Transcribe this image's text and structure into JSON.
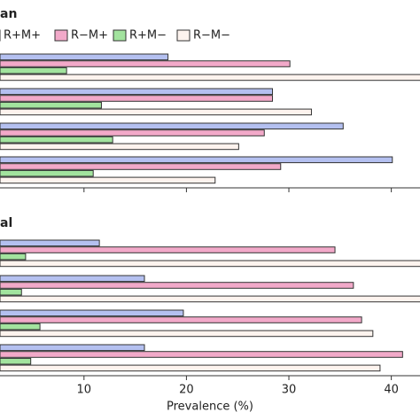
{
  "chart_data": [
    {
      "type": "barh",
      "title": "an",
      "legend": "top-left",
      "categories": [
        null,
        null,
        null,
        null
      ],
      "series": [
        {
          "name": "R+M+",
          "color": "#b4c0f0",
          "values": [
            18.2,
            28.4,
            35.3,
            40.1
          ]
        },
        {
          "name": "R−M+",
          "color": "#f2a9c9",
          "values": [
            30.1,
            28.4,
            27.6,
            29.2
          ]
        },
        {
          "name": "R+M−",
          "color": "#a2e39e",
          "values": [
            8.3,
            11.7,
            12.8,
            10.9
          ]
        },
        {
          "name": "R−M−",
          "color": "#fdf3ee",
          "values": [
            43,
            32.2,
            25.1,
            22.8
          ]
        }
      ],
      "xlim": [
        1.8,
        42.8
      ],
      "xticks": [
        10,
        20,
        30,
        40
      ]
    },
    {
      "type": "barh",
      "title": "al",
      "xlabel": "Prevalence (%)",
      "categories": [
        null,
        null,
        null,
        null
      ],
      "series": [
        {
          "name": "R+M+",
          "color": "#b4c0f0",
          "values": [
            11.5,
            15.9,
            19.7,
            15.9
          ]
        },
        {
          "name": "R−M+",
          "color": "#f2a9c9",
          "values": [
            34.5,
            36.3,
            37.1,
            41.1
          ]
        },
        {
          "name": "R+M−",
          "color": "#a2e39e",
          "values": [
            4.3,
            3.9,
            5.7,
            4.8
          ]
        },
        {
          "name": "R−M−",
          "color": "#fdf3ee",
          "values": [
            43,
            43,
            38.2,
            38.9
          ]
        }
      ],
      "xlim": [
        1.8,
        42.8
      ],
      "xticks": [
        10,
        20,
        30,
        40
      ]
    }
  ]
}
